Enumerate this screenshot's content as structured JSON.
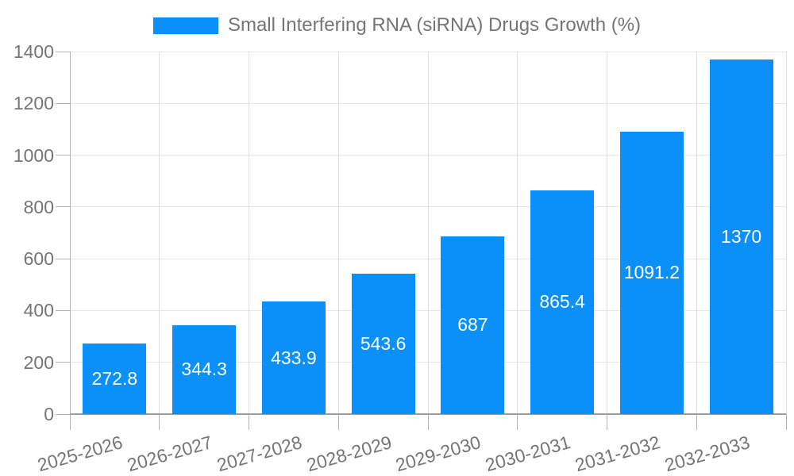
{
  "chart_data": {
    "type": "bar",
    "title": "Small Interfering RNA (siRNA) Drugs Growth (%)",
    "legend": {
      "position": "top",
      "label": "Small Interfering RNA (siRNA) Drugs Growth (%)"
    },
    "categories": [
      "2025-2026",
      "2026-2027",
      "2027-2028",
      "2028-2029",
      "2029-2030",
      "2030-2031",
      "2031-2032",
      "2032-2033"
    ],
    "values": [
      272.8,
      344.3,
      433.9,
      543.6,
      687,
      865.4,
      1091.2,
      1370
    ],
    "value_labels": [
      "272.8",
      "344.3",
      "433.9",
      "543.6",
      "687",
      "865.4",
      "1091.2",
      "1370"
    ],
    "xlabel": "",
    "ylabel": "",
    "ylim": [
      0,
      1400
    ],
    "yticks": [
      0,
      200,
      400,
      600,
      800,
      1000,
      1200,
      1400
    ],
    "grid": true,
    "colors": {
      "bar": "#0a90f8",
      "axis_text": "#757575",
      "value_text": "#ffffff",
      "grid_horizontal": "#e6e6e6",
      "grid_vertical": "#e0e0e0",
      "axis_line": "#b3b3b3",
      "baseline": "#9e9e9e",
      "background": "#ffffff"
    }
  }
}
